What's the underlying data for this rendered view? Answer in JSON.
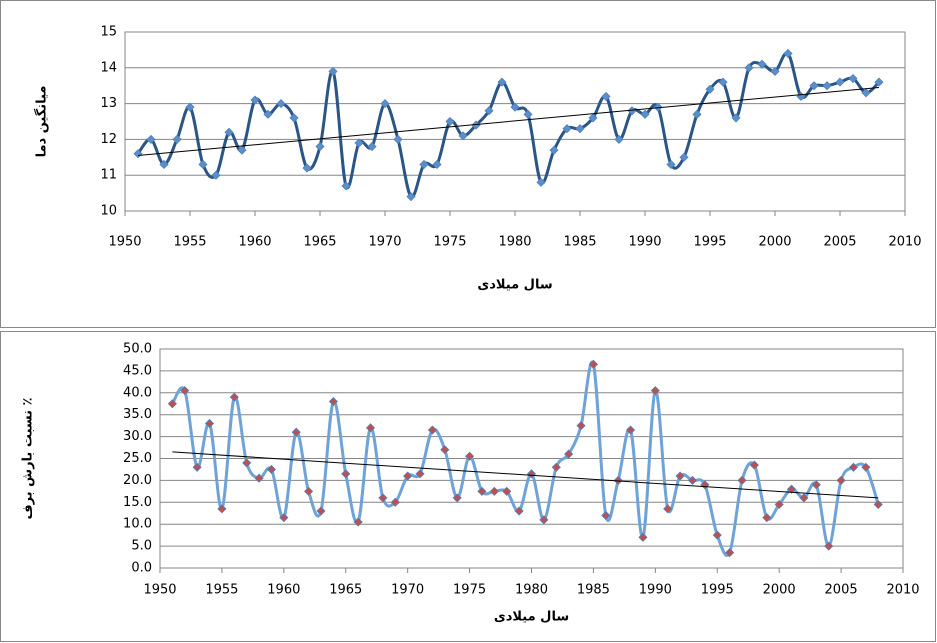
{
  "chart_data": [
    {
      "type": "line",
      "y_label": "میانگین دما",
      "x_label": "سال میلادی",
      "x": [
        1951,
        1952,
        1953,
        1954,
        1955,
        1956,
        1957,
        1958,
        1959,
        1960,
        1961,
        1962,
        1963,
        1964,
        1965,
        1966,
        1967,
        1968,
        1969,
        1970,
        1971,
        1972,
        1973,
        1974,
        1975,
        1976,
        1977,
        1978,
        1979,
        1980,
        1981,
        1982,
        1983,
        1984,
        1985,
        1986,
        1987,
        1988,
        1989,
        1990,
        1991,
        1992,
        1993,
        1994,
        1995,
        1996,
        1997,
        1998,
        1999,
        2000,
        2001,
        2002,
        2003,
        2004,
        2005,
        2006,
        2007,
        2008
      ],
      "series": [
        {
          "color": "#2a5587",
          "marker_color": "#5b8fc9",
          "values": [
            11.6,
            12.0,
            11.3,
            12.0,
            12.9,
            11.3,
            11.0,
            12.2,
            11.7,
            13.1,
            12.7,
            13.0,
            12.6,
            11.2,
            11.8,
            13.9,
            10.7,
            11.9,
            11.8,
            13.0,
            12.0,
            10.4,
            11.3,
            11.3,
            12.5,
            12.1,
            12.4,
            12.8,
            13.6,
            12.9,
            12.7,
            10.8,
            11.7,
            12.3,
            12.3,
            12.6,
            13.2,
            12.0,
            12.8,
            12.7,
            12.9,
            11.3,
            11.5,
            12.7,
            13.4,
            13.6,
            12.6,
            14.0,
            14.1,
            13.9,
            14.4,
            13.2,
            13.5,
            13.5,
            13.6,
            13.7,
            13.3,
            13.6
          ]
        }
      ],
      "trendline": {
        "color": "#000000",
        "x": [
          1951,
          2008
        ],
        "values": [
          11.55,
          13.45
        ]
      },
      "xlim": [
        1950,
        2010
      ],
      "xticks": [
        1950,
        1955,
        1960,
        1965,
        1970,
        1975,
        1980,
        1985,
        1990,
        1995,
        2000,
        2005,
        2010
      ],
      "ylim": [
        10,
        15
      ],
      "yticks": [
        10,
        11,
        12,
        13,
        14,
        15
      ],
      "grid": true
    },
    {
      "type": "line",
      "y_label": "نسبت بارش برف ٪",
      "x_label": "سال میلادی",
      "x": [
        1951,
        1952,
        1953,
        1954,
        1955,
        1956,
        1957,
        1958,
        1959,
        1960,
        1961,
        1962,
        1963,
        1964,
        1965,
        1966,
        1967,
        1968,
        1969,
        1970,
        1971,
        1972,
        1973,
        1974,
        1975,
        1976,
        1977,
        1978,
        1979,
        1980,
        1981,
        1982,
        1983,
        1984,
        1985,
        1986,
        1987,
        1988,
        1989,
        1990,
        1991,
        1992,
        1993,
        1994,
        1995,
        1996,
        1997,
        1998,
        1999,
        2000,
        2001,
        2002,
        2003,
        2004,
        2005,
        2006,
        2007,
        2008
      ],
      "series": [
        {
          "color": "#6fa3d8",
          "marker_color": "#c0504d",
          "values": [
            37.5,
            40.5,
            23,
            33,
            13.5,
            39,
            24,
            20.5,
            22.5,
            11.5,
            31,
            17.5,
            13,
            38,
            21.5,
            10.5,
            32,
            16,
            15,
            21,
            21.5,
            31.5,
            27,
            16,
            25.5,
            17.5,
            17.5,
            17.5,
            13,
            21.5,
            11,
            23,
            26,
            32.5,
            46.5,
            12,
            20,
            31.5,
            7,
            40.5,
            13.5,
            21,
            20,
            19,
            7.5,
            3.5,
            20,
            23.5,
            11.5,
            14.5,
            18,
            16,
            19,
            5,
            20,
            23,
            23,
            14.5
          ]
        }
      ],
      "trendline": {
        "color": "#000000",
        "x": [
          1951,
          2008
        ],
        "values": [
          26.5,
          16
        ]
      },
      "xlim": [
        1950,
        2010
      ],
      "xticks": [
        1950,
        1955,
        1960,
        1965,
        1970,
        1975,
        1980,
        1985,
        1990,
        1995,
        2000,
        2005,
        2010
      ],
      "ylim": [
        0,
        50
      ],
      "yticks": [
        {
          "value": 0,
          "label": "0.0"
        },
        {
          "value": 5,
          "label": "5.0"
        },
        {
          "value": 10,
          "label": "10.0"
        },
        {
          "value": 15,
          "label": "15.0"
        },
        {
          "value": 20,
          "label": "20.0"
        },
        {
          "value": 25,
          "label": "25.0"
        },
        {
          "value": 30,
          "label": "30.0"
        },
        {
          "value": 35,
          "label": "35.0"
        },
        {
          "value": 40,
          "label": "40.0"
        },
        {
          "value": 45,
          "label": "45.0"
        },
        {
          "value": 50,
          "label": "50.0"
        }
      ],
      "grid": true
    }
  ]
}
